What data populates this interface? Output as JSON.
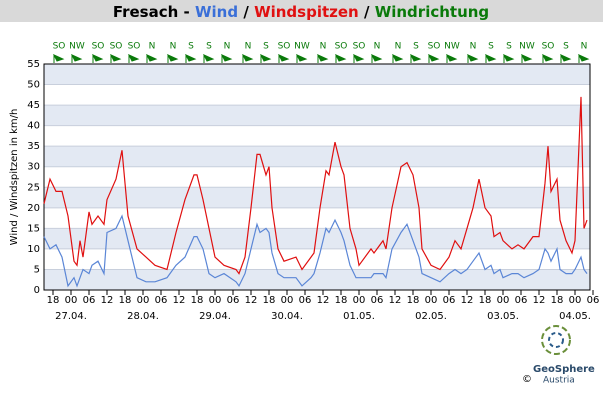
{
  "chart_data": {
    "type": "line",
    "title_parts": [
      {
        "text": "Fresach -",
        "color": "#000000"
      },
      {
        "text": "Wind",
        "color": "#3a6fd8"
      },
      {
        "text": "/",
        "color": "#000000"
      },
      {
        "text": "Windspitzen",
        "color": "#e01010"
      },
      {
        "text": "/",
        "color": "#000000"
      },
      {
        "text": "Windrichtung",
        "color": "#0a7a0a"
      }
    ],
    "y_label": "Wind / Windspitzen in km/h",
    "ylim": [
      0,
      55
    ],
    "yticks": [
      0,
      5,
      10,
      15,
      20,
      25,
      30,
      35,
      40,
      45,
      50,
      55
    ],
    "xlim": [
      15,
      197
    ],
    "xticks": [
      {
        "value": 18,
        "label": "18"
      },
      {
        "value": 24,
        "label": "00"
      },
      {
        "value": 30,
        "label": "06"
      },
      {
        "value": 36,
        "label": "12"
      },
      {
        "value": 42,
        "label": "18"
      },
      {
        "value": 48,
        "label": "00"
      },
      {
        "value": 54,
        "label": "06"
      },
      {
        "value": 60,
        "label": "12"
      },
      {
        "value": 66,
        "label": "18"
      },
      {
        "value": 72,
        "label": "00"
      },
      {
        "value": 78,
        "label": "06"
      },
      {
        "value": 84,
        "label": "12"
      },
      {
        "value": 90,
        "label": "18"
      },
      {
        "value": 96,
        "label": "00"
      },
      {
        "value": 102,
        "label": "06"
      },
      {
        "value": 108,
        "label": "12"
      },
      {
        "value": 114,
        "label": "18"
      },
      {
        "value": 120,
        "label": "00"
      },
      {
        "value": 126,
        "label": "06"
      },
      {
        "value": 132,
        "label": "12"
      },
      {
        "value": 138,
        "label": "18"
      },
      {
        "value": 144,
        "label": "00"
      },
      {
        "value": 150,
        "label": "06"
      },
      {
        "value": 156,
        "label": "12"
      },
      {
        "value": 162,
        "label": "18"
      },
      {
        "value": 168,
        "label": "00"
      },
      {
        "value": 174,
        "label": "06"
      },
      {
        "value": 180,
        "label": "12"
      },
      {
        "value": 186,
        "label": "18"
      },
      {
        "value": 192,
        "label": "00"
      },
      {
        "value": 198,
        "label": "06"
      }
    ],
    "date_ticks": [
      {
        "value": 24,
        "label": "27.04."
      },
      {
        "value": 48,
        "label": "28.04."
      },
      {
        "value": 72,
        "label": "29.04."
      },
      {
        "value": 96,
        "label": "30.04."
      },
      {
        "value": 120,
        "label": "01.05."
      },
      {
        "value": 144,
        "label": "02.05."
      },
      {
        "value": 168,
        "label": "03.05."
      },
      {
        "value": 192,
        "label": "04.05."
      }
    ],
    "grid": true,
    "x": [
      15,
      17,
      19,
      21,
      23,
      25,
      26,
      27,
      28,
      30,
      31,
      33,
      35,
      36,
      39,
      41,
      43,
      46,
      49,
      52,
      56,
      59,
      62,
      65,
      66,
      68,
      70,
      72,
      75,
      79,
      80,
      82,
      84,
      86,
      87,
      89,
      90,
      91,
      93,
      95,
      99,
      101,
      104,
      105,
      107,
      109,
      110,
      112,
      114,
      115,
      117,
      119,
      120,
      124,
      125,
      128,
      129,
      131,
      134,
      136,
      138,
      140,
      141,
      144,
      147,
      150,
      152,
      154,
      156,
      158,
      160,
      162,
      164,
      165,
      167,
      168,
      171,
      173,
      175,
      178,
      180,
      182,
      183,
      184,
      186,
      187,
      189,
      191,
      192,
      194,
      195,
      196
    ],
    "series": [
      {
        "name": "Windspitzen",
        "color": "#e01010",
        "values": [
          21,
          27,
          24,
          24,
          18,
          7,
          6,
          12,
          8,
          19,
          16,
          18,
          16,
          22,
          27,
          34,
          18,
          10,
          8,
          6,
          5,
          14,
          22,
          28,
          28,
          22,
          15,
          8,
          6,
          5,
          4,
          8,
          20,
          33,
          33,
          28,
          30,
          20,
          10,
          7,
          8,
          5,
          8,
          9,
          20,
          29,
          28,
          36,
          30,
          28,
          15,
          10,
          6,
          10,
          9,
          12,
          10,
          20,
          30,
          31,
          28,
          20,
          10,
          6,
          5,
          8,
          12,
          10,
          15,
          20,
          27,
          20,
          18,
          13,
          14,
          12,
          10,
          11,
          10,
          13,
          13,
          26,
          35,
          24,
          27,
          17,
          12,
          9,
          12,
          47,
          15,
          17
        ]
      },
      {
        "name": "Wind",
        "color": "#5b86d6",
        "values": [
          13,
          10,
          11,
          8,
          1,
          3,
          1,
          3,
          5,
          4,
          6,
          7,
          4,
          14,
          15,
          18,
          12,
          3,
          2,
          2,
          3,
          6,
          8,
          13,
          13,
          10,
          4,
          3,
          4,
          2,
          1,
          4,
          10,
          16,
          14,
          15,
          14,
          9,
          4,
          3,
          3,
          1,
          3,
          4,
          9,
          15,
          14,
          17,
          14,
          12,
          6,
          3,
          3,
          3,
          4,
          4,
          3,
          10,
          14,
          16,
          12,
          8,
          4,
          3,
          2,
          4,
          5,
          4,
          5,
          7,
          9,
          5,
          6,
          4,
          5,
          3,
          4,
          4,
          3,
          4,
          5,
          10,
          9,
          7,
          10,
          5,
          4,
          4,
          5,
          8,
          5,
          4
        ]
      }
    ],
    "directions": {
      "color": "#0a7a0a",
      "x": [
        20,
        26,
        33,
        39,
        45,
        51,
        58,
        64,
        70,
        76,
        83,
        89,
        95,
        101,
        108,
        114,
        120,
        126,
        133,
        139,
        145,
        151,
        158,
        164,
        170,
        176,
        183,
        189,
        195
      ],
      "labels": [
        "SO",
        "NW",
        "SO",
        "SO",
        "SO",
        "N",
        "N",
        "S",
        "S",
        "N",
        "N",
        "S",
        "SO",
        "NW",
        "N",
        "SO",
        "SO",
        "N",
        "N",
        "S",
        "SO",
        "NW",
        "N",
        "S",
        "S",
        "NW",
        "SO",
        "S",
        "N"
      ]
    },
    "footer": {
      "copyright": "©",
      "brand": "GeoSphere",
      "country": "Austria"
    }
  }
}
